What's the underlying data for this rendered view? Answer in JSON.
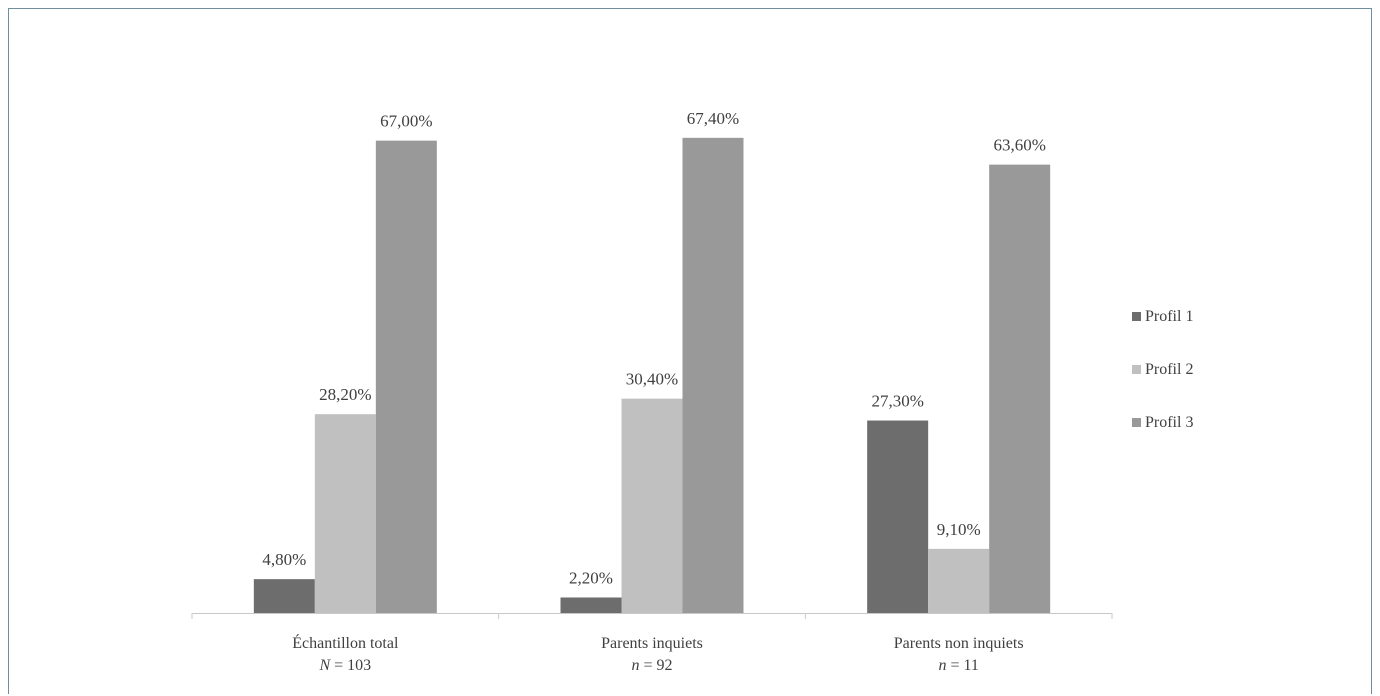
{
  "chart_data": {
    "type": "bar",
    "title": "",
    "xlabel": "",
    "ylabel": "",
    "ylim": [
      0,
      70
    ],
    "grid": false,
    "legend_position": "right",
    "categories": [
      {
        "label": "Échantillon total",
        "n_label": "N",
        "n_value": "= 103"
      },
      {
        "label": "Parents inquiets",
        "n_label": "n",
        "n_value": "= 92"
      },
      {
        "label": "Parents non inquiets",
        "n_label": "n",
        "n_value": "= 11"
      }
    ],
    "series": [
      {
        "name": "Profil 1",
        "color": "#6d6d6d",
        "values": [
          4.8,
          2.2,
          27.3
        ],
        "labels": [
          "4,80%",
          "2,20%",
          "27,30%"
        ]
      },
      {
        "name": "Profil 2",
        "color": "#c0c0c0",
        "values": [
          28.2,
          30.4,
          9.1
        ],
        "labels": [
          "28,20%",
          "30,40%",
          "9,10%"
        ]
      },
      {
        "name": "Profil 3",
        "color": "#999999",
        "values": [
          67.0,
          67.4,
          63.6
        ],
        "labels": [
          "67,00%",
          "67,40%",
          "63,60%"
        ]
      }
    ]
  }
}
